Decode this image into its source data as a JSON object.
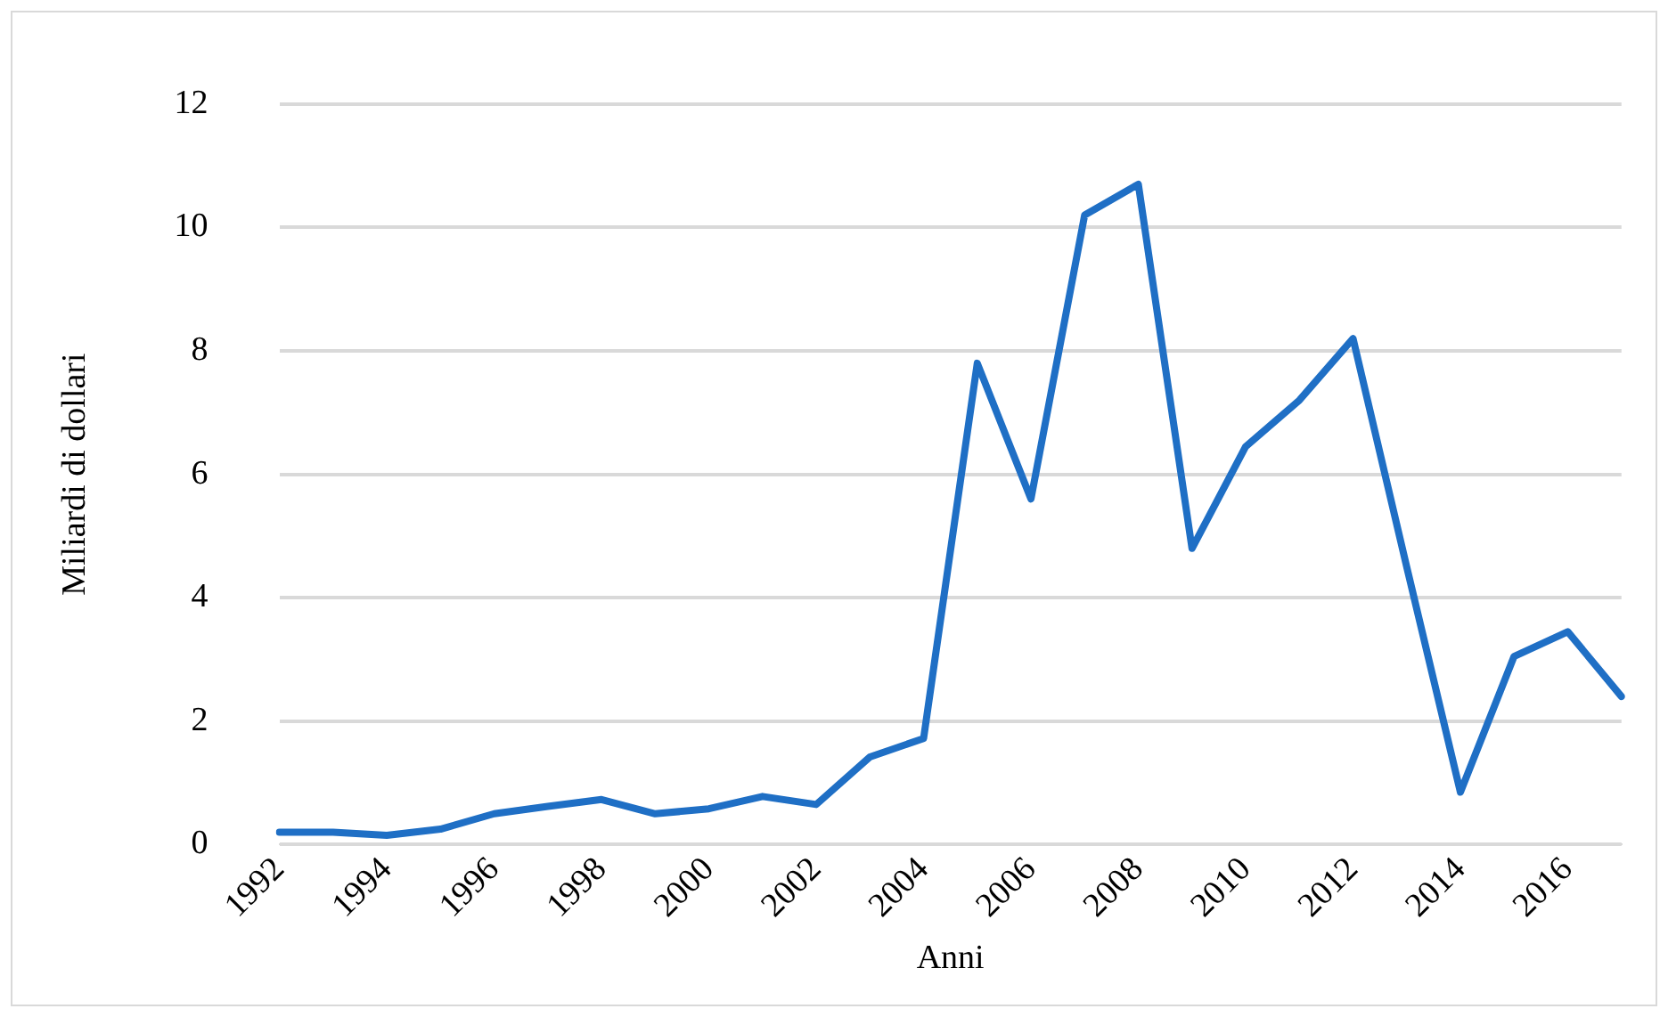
{
  "chart_data": {
    "type": "line",
    "xlabel": "Anni",
    "ylabel": "Miliardi di dollari",
    "categories": [
      "1992",
      null,
      "1994",
      null,
      "1996",
      null,
      "1998",
      null,
      "2000",
      null,
      "2002",
      null,
      "2004",
      null,
      "2006",
      null,
      "2008",
      null,
      "2010",
      null,
      "2012",
      null,
      "2014",
      null,
      "2016",
      null
    ],
    "series": [
      {
        "color": "#1f6fc5",
        "values": [
          0.2,
          0.2,
          0.15,
          0.25,
          0.5,
          0.62,
          0.73,
          0.5,
          0.58,
          0.78,
          0.65,
          1.42,
          1.72,
          7.8,
          5.6,
          10.2,
          10.7,
          4.8,
          6.45,
          7.2,
          8.2,
          4.5,
          0.85,
          3.05,
          3.45,
          2.4
        ]
      }
    ],
    "ylim": [
      0,
      12
    ],
    "yticks": [
      0,
      2,
      4,
      6,
      8,
      10,
      12
    ],
    "grid": "y",
    "legend": false,
    "marker": "none",
    "line_style": "solid"
  }
}
